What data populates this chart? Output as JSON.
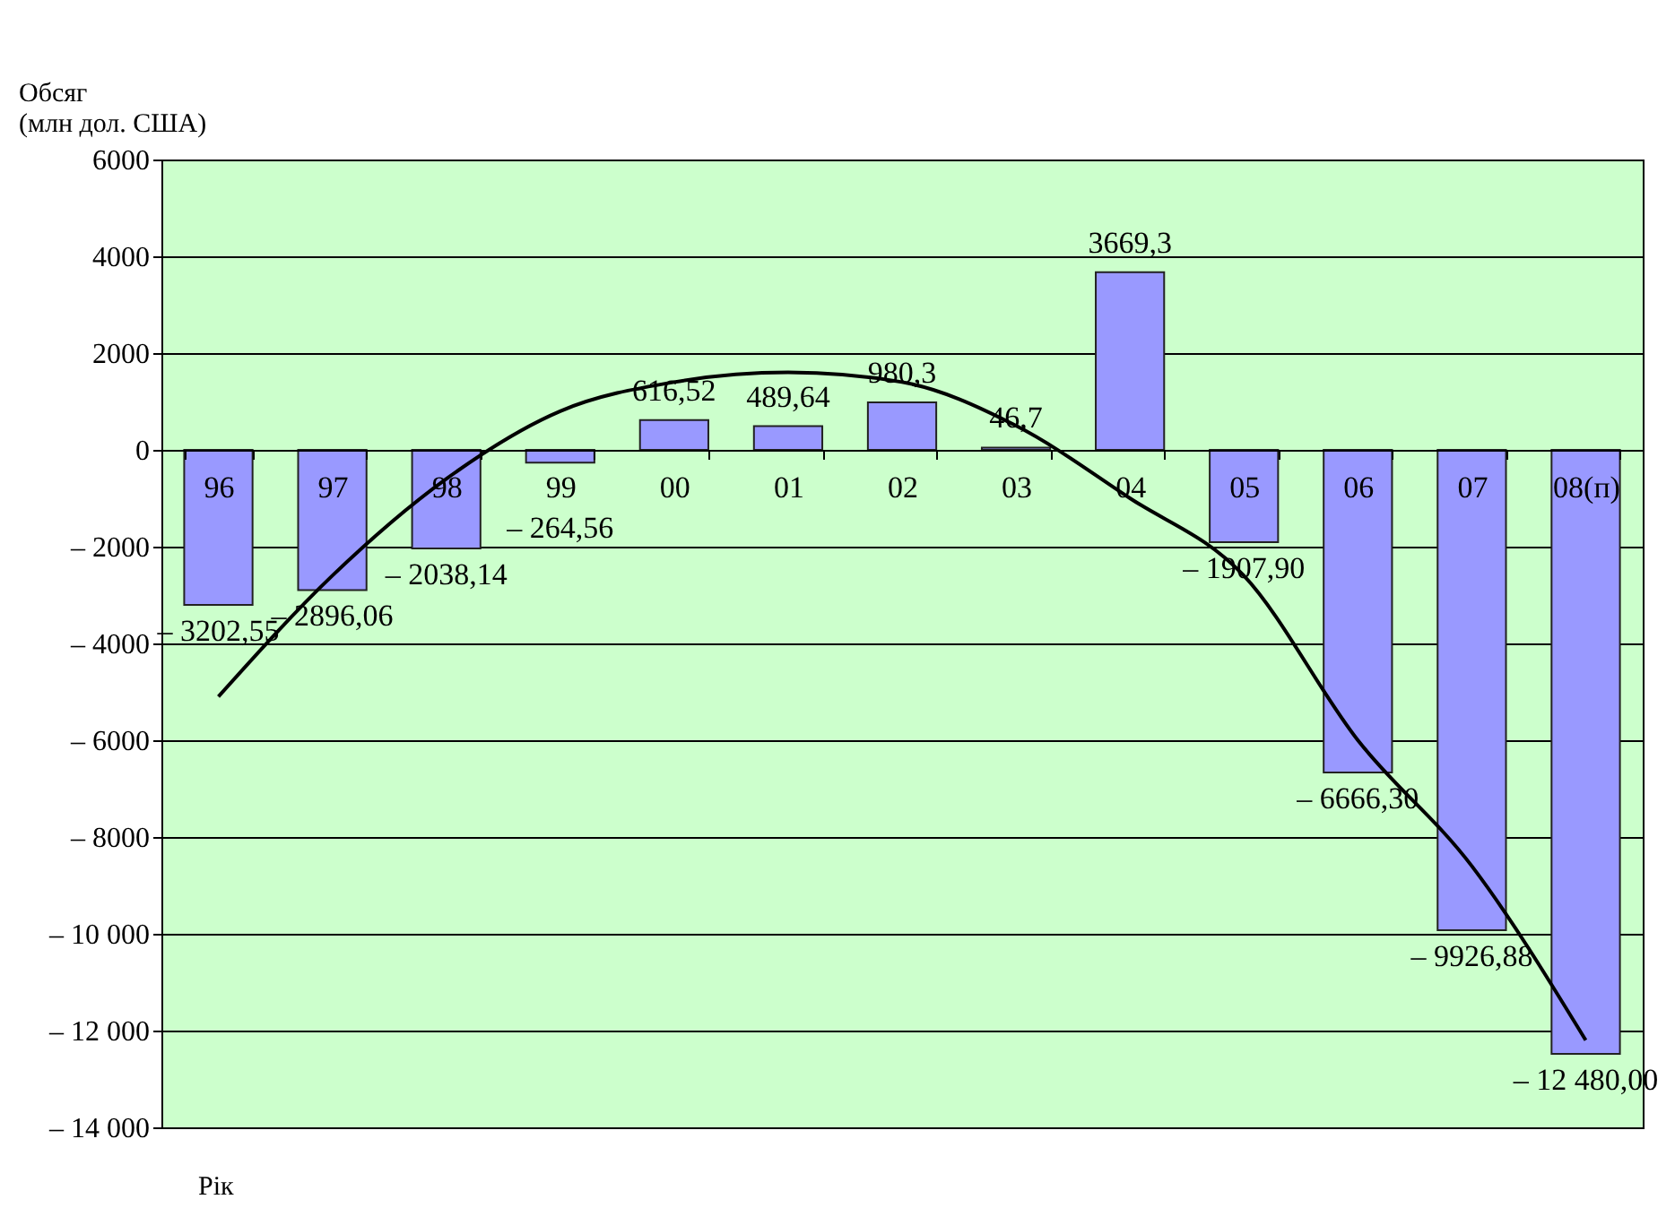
{
  "chart_data": {
    "type": "bar",
    "xlabel": "Рік",
    "ylabel": "Обсяг\n(млн дол. США)",
    "categories": [
      "96",
      "97",
      "98",
      "99",
      "00",
      "01",
      "02",
      "03",
      "04",
      "05",
      "06",
      "07",
      "08(п)"
    ],
    "series": [
      {
        "color": "#9999ff",
        "values": [
          -3202.55,
          -2896.06,
          -2038.14,
          -264.56,
          616.52,
          489.64,
          980.3,
          46.7,
          3669.3,
          -1907.9,
          -6666.3,
          -9926.88,
          -12480.0
        ],
        "value_labels": [
          "– 3202,55",
          "– 2896,06",
          "– 2038,14",
          "– 264,56",
          "616,52",
          "489,64",
          "980,3",
          "46,7",
          "3669,3",
          "– 1907,90",
          "– 6666,30",
          "– 9926,88",
          "– 12 480,00"
        ]
      },
      {
        "type": "line",
        "color": "#000000",
        "values": [
          -5100,
          -2600,
          -600,
          800,
          1400,
          1600,
          1400,
          500,
          -1000,
          -2600,
          -6000,
          -8600,
          -12200
        ]
      }
    ],
    "ylim": [
      -14000,
      6000
    ],
    "yticks": [
      {
        "value": -14000,
        "label": "– 14 000"
      },
      {
        "value": -12000,
        "label": "– 12 000"
      },
      {
        "value": -10000,
        "label": "– 10 000"
      },
      {
        "value": -8000,
        "label": "– 8000"
      },
      {
        "value": -6000,
        "label": "– 6000"
      },
      {
        "value": -4000,
        "label": "– 4000"
      },
      {
        "value": -2000,
        "label": "– 2000"
      },
      0,
      {
        "value": 2000,
        "label": "2000"
      },
      {
        "value": 4000,
        "label": "4000"
      },
      {
        "value": 6000,
        "label": "6000"
      }
    ],
    "grid": "y"
  }
}
